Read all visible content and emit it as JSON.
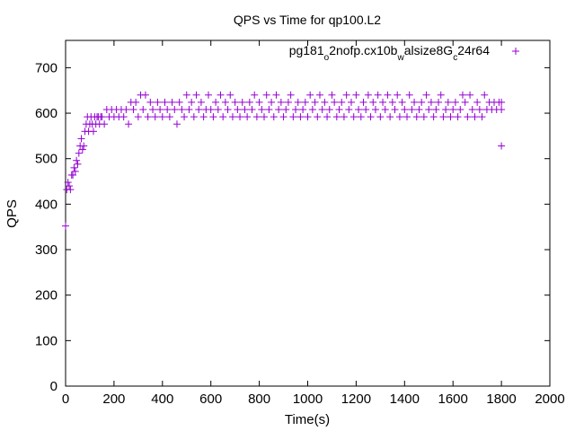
{
  "chart_data": {
    "type": "scatter",
    "title": "QPS vs Time for qp100.L2",
    "xlabel": "Time(s)",
    "ylabel": "QPS",
    "xlim": [
      0,
      2000
    ],
    "ylim": [
      0,
      760
    ],
    "xticks": [
      0,
      200,
      400,
      600,
      800,
      1000,
      1200,
      1400,
      1600,
      1800,
      2000
    ],
    "yticks": [
      0,
      100,
      200,
      300,
      400,
      500,
      600,
      700
    ],
    "grid": false,
    "legend": {
      "position": "top-right",
      "parts": [
        {
          "text": "pg181",
          "sub": false
        },
        {
          "text": "o",
          "sub": true
        },
        {
          "text": "2nofp.cx10b",
          "sub": false
        },
        {
          "text": "w",
          "sub": true
        },
        {
          "text": "alsize8G",
          "sub": false
        },
        {
          "text": "c",
          "sub": true
        },
        {
          "text": "24r64",
          "sub": false
        }
      ]
    },
    "series": [
      {
        "name": "pg181_o2nofp.cx10b_walsize8G_c24r64",
        "color": "#9400d3",
        "marker": "+",
        "points": [
          [
            0,
            352
          ],
          [
            5,
            432
          ],
          [
            10,
            448
          ],
          [
            15,
            440
          ],
          [
            20,
            432
          ],
          [
            25,
            464
          ],
          [
            30,
            464
          ],
          [
            35,
            480
          ],
          [
            40,
            472
          ],
          [
            45,
            496
          ],
          [
            50,
            488
          ],
          [
            55,
            512
          ],
          [
            60,
            528
          ],
          [
            65,
            544
          ],
          [
            70,
            520
          ],
          [
            75,
            528
          ],
          [
            80,
            560
          ],
          [
            85,
            576
          ],
          [
            90,
            592
          ],
          [
            95,
            560
          ],
          [
            100,
            576
          ],
          [
            105,
            592
          ],
          [
            110,
            576
          ],
          [
            115,
            560
          ],
          [
            120,
            592
          ],
          [
            125,
            576
          ],
          [
            130,
            592
          ],
          [
            135,
            592
          ],
          [
            140,
            576
          ],
          [
            145,
            592
          ],
          [
            150,
            592
          ],
          [
            160,
            576
          ],
          [
            170,
            608
          ],
          [
            180,
            592
          ],
          [
            190,
            608
          ],
          [
            200,
            592
          ],
          [
            210,
            608
          ],
          [
            220,
            592
          ],
          [
            230,
            608
          ],
          [
            240,
            592
          ],
          [
            250,
            608
          ],
          [
            260,
            576
          ],
          [
            270,
            624
          ],
          [
            280,
            608
          ],
          [
            290,
            624
          ],
          [
            300,
            592
          ],
          [
            310,
            640
          ],
          [
            320,
            608
          ],
          [
            330,
            640
          ],
          [
            340,
            592
          ],
          [
            350,
            624
          ],
          [
            360,
            608
          ],
          [
            370,
            592
          ],
          [
            380,
            624
          ],
          [
            390,
            608
          ],
          [
            400,
            592
          ],
          [
            410,
            624
          ],
          [
            420,
            608
          ],
          [
            430,
            592
          ],
          [
            440,
            624
          ],
          [
            450,
            608
          ],
          [
            460,
            576
          ],
          [
            470,
            624
          ],
          [
            480,
            608
          ],
          [
            490,
            592
          ],
          [
            500,
            640
          ],
          [
            510,
            608
          ],
          [
            520,
            624
          ],
          [
            530,
            592
          ],
          [
            540,
            640
          ],
          [
            550,
            608
          ],
          [
            560,
            624
          ],
          [
            570,
            592
          ],
          [
            580,
            608
          ],
          [
            590,
            640
          ],
          [
            600,
            608
          ],
          [
            610,
            592
          ],
          [
            620,
            624
          ],
          [
            630,
            608
          ],
          [
            640,
            640
          ],
          [
            650,
            592
          ],
          [
            660,
            624
          ],
          [
            670,
            608
          ],
          [
            680,
            640
          ],
          [
            690,
            592
          ],
          [
            700,
            624
          ],
          [
            710,
            608
          ],
          [
            720,
            592
          ],
          [
            730,
            624
          ],
          [
            740,
            608
          ],
          [
            750,
            592
          ],
          [
            760,
            624
          ],
          [
            770,
            608
          ],
          [
            780,
            640
          ],
          [
            790,
            592
          ],
          [
            800,
            624
          ],
          [
            810,
            608
          ],
          [
            820,
            592
          ],
          [
            830,
            640
          ],
          [
            840,
            608
          ],
          [
            850,
            624
          ],
          [
            860,
            592
          ],
          [
            870,
            640
          ],
          [
            880,
            608
          ],
          [
            890,
            624
          ],
          [
            900,
            592
          ],
          [
            910,
            608
          ],
          [
            920,
            624
          ],
          [
            930,
            640
          ],
          [
            940,
            592
          ],
          [
            950,
            608
          ],
          [
            960,
            624
          ],
          [
            970,
            592
          ],
          [
            980,
            608
          ],
          [
            990,
            624
          ],
          [
            1000,
            592
          ],
          [
            1010,
            640
          ],
          [
            1020,
            608
          ],
          [
            1030,
            624
          ],
          [
            1040,
            592
          ],
          [
            1050,
            640
          ],
          [
            1060,
            608
          ],
          [
            1070,
            624
          ],
          [
            1080,
            592
          ],
          [
            1090,
            608
          ],
          [
            1100,
            640
          ],
          [
            1110,
            624
          ],
          [
            1120,
            592
          ],
          [
            1130,
            608
          ],
          [
            1140,
            624
          ],
          [
            1150,
            592
          ],
          [
            1160,
            640
          ],
          [
            1170,
            608
          ],
          [
            1180,
            624
          ],
          [
            1190,
            592
          ],
          [
            1200,
            640
          ],
          [
            1210,
            608
          ],
          [
            1220,
            592
          ],
          [
            1230,
            624
          ],
          [
            1240,
            608
          ],
          [
            1250,
            640
          ],
          [
            1260,
            592
          ],
          [
            1270,
            624
          ],
          [
            1280,
            608
          ],
          [
            1290,
            640
          ],
          [
            1300,
            592
          ],
          [
            1310,
            624
          ],
          [
            1320,
            608
          ],
          [
            1330,
            640
          ],
          [
            1340,
            592
          ],
          [
            1350,
            624
          ],
          [
            1360,
            608
          ],
          [
            1370,
            640
          ],
          [
            1380,
            592
          ],
          [
            1390,
            624
          ],
          [
            1400,
            608
          ],
          [
            1410,
            592
          ],
          [
            1420,
            640
          ],
          [
            1430,
            608
          ],
          [
            1440,
            624
          ],
          [
            1450,
            592
          ],
          [
            1460,
            608
          ],
          [
            1470,
            624
          ],
          [
            1480,
            592
          ],
          [
            1490,
            640
          ],
          [
            1500,
            608
          ],
          [
            1510,
            624
          ],
          [
            1520,
            592
          ],
          [
            1530,
            608
          ],
          [
            1540,
            624
          ],
          [
            1550,
            640
          ],
          [
            1560,
            592
          ],
          [
            1570,
            608
          ],
          [
            1580,
            624
          ],
          [
            1590,
            592
          ],
          [
            1600,
            608
          ],
          [
            1610,
            624
          ],
          [
            1620,
            592
          ],
          [
            1630,
            608
          ],
          [
            1640,
            640
          ],
          [
            1650,
            624
          ],
          [
            1660,
            592
          ],
          [
            1670,
            640
          ],
          [
            1680,
            608
          ],
          [
            1690,
            592
          ],
          [
            1700,
            624
          ],
          [
            1710,
            608
          ],
          [
            1720,
            592
          ],
          [
            1730,
            640
          ],
          [
            1740,
            608
          ],
          [
            1750,
            624
          ],
          [
            1760,
            608
          ],
          [
            1770,
            624
          ],
          [
            1780,
            608
          ],
          [
            1790,
            624
          ],
          [
            1800,
            528
          ],
          [
            1800,
            608
          ],
          [
            1800,
            624
          ]
        ]
      }
    ]
  }
}
